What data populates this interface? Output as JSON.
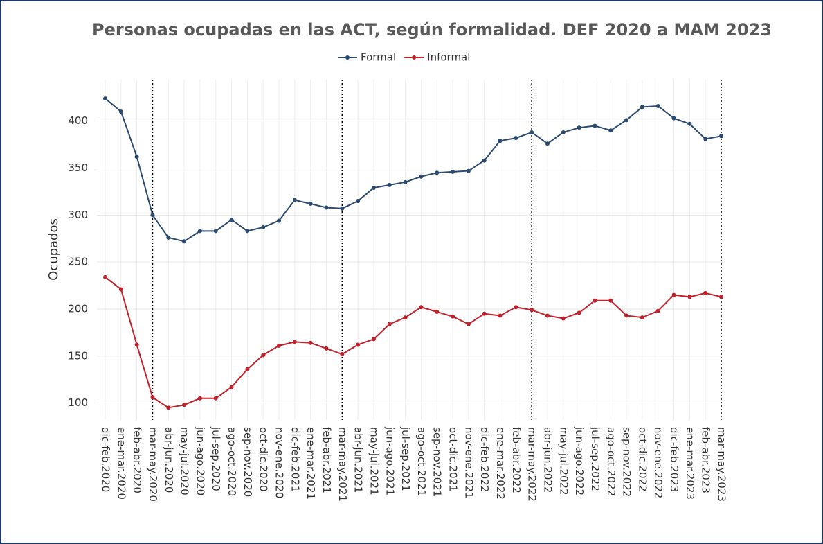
{
  "chart_data": {
    "type": "line",
    "title": "Personas ocupadas en las ACT, según formalidad. DEF 2020 a MAM 2023",
    "y_label": "Ocupados",
    "categories": [
      "dic-feb.2020",
      "ene-mar.2020",
      "feb-abr.2020",
      "mar-may.2020",
      "abr-jun.2020",
      "may-jul.2020",
      "jun-ago.2020",
      "jul-sep.2020",
      "ago-oct.2020",
      "sep-nov.2020",
      "oct-dic.2020",
      "nov-ene.2020",
      "dic-feb.2021",
      "ene-mar.2021",
      "feb-abr.2021",
      "mar-may.2021",
      "abr-jun.2021",
      "may-jul.2021",
      "jun-ago.2021",
      "jul-sep.2021",
      "ago-oct.2021",
      "sep-nov.2021",
      "oct-dic.2021",
      "nov-ene.2021",
      "dic-feb.2022",
      "ene-mar.2022",
      "feb-abr.2022",
      "mar-may.2022",
      "abr-jun.2022",
      "may-jul.2022",
      "jun-ago.2022",
      "jul-sep.2022",
      "ago-oct.2022",
      "sep-nov.2022",
      "oct-dic.2022",
      "nov-ene.2022",
      "dic-feb.2023",
      "ene-mar.2023",
      "feb-abr.2023",
      "mar-may.2023"
    ],
    "series": [
      {
        "name": "Formal",
        "color": "#2b4a6f",
        "values": [
          424,
          410,
          362,
          300,
          276,
          272,
          283,
          283,
          295,
          283,
          287,
          294,
          316,
          312,
          308,
          307,
          315,
          329,
          332,
          335,
          341,
          345,
          346,
          347,
          358,
          379,
          382,
          388,
          376,
          388,
          393,
          395,
          390,
          401,
          415,
          416,
          403,
          397,
          381,
          384
        ]
      },
      {
        "name": "Informal",
        "color": "#c0212b",
        "values": [
          234,
          221,
          162,
          106,
          95,
          98,
          105,
          105,
          117,
          136,
          151,
          161,
          165,
          164,
          158,
          152,
          162,
          168,
          184,
          191,
          202,
          197,
          192,
          184,
          195,
          193,
          202,
          199,
          193,
          190,
          196,
          209,
          209,
          193,
          191,
          198,
          215,
          213,
          217,
          213
        ]
      }
    ],
    "ylim": [
      82,
      444
    ],
    "yticks": [
      100,
      150,
      200,
      250,
      300,
      350,
      400
    ],
    "grid": true,
    "vline_indices": [
      3,
      15,
      27,
      39
    ]
  }
}
